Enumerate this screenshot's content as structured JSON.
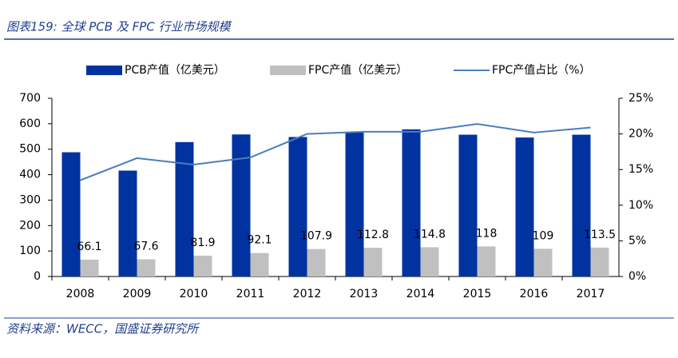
{
  "title": "图表159: 全球 PCB 及 FPC 行业市场规模",
  "source": "资料来源：WECC，国盛证券研究所",
  "chart_data": {
    "type": "bar",
    "categories": [
      "2008",
      "2009",
      "2010",
      "2011",
      "2012",
      "2013",
      "2014",
      "2015",
      "2016",
      "2017"
    ],
    "series": [
      {
        "name": "PCB产值（亿美元）",
        "color": "#0033a0",
        "type": "bar",
        "values": [
          488,
          416,
          528,
          558,
          548,
          565,
          578,
          557,
          546,
          557
        ]
      },
      {
        "name": "FPC产值（亿美元）",
        "color": "#c0c0c0",
        "type": "bar",
        "values": [
          66.1,
          67.6,
          81.9,
          92.1,
          107.9,
          112.8,
          114.8,
          118,
          109,
          113.5
        ]
      },
      {
        "name": "FPC产值占比（%）",
        "color": "#4a7ebb",
        "type": "line",
        "axis": "y2",
        "values": [
          13.5,
          16.6,
          15.7,
          16.7,
          20.0,
          20.3,
          20.3,
          21.4,
          20.2,
          20.9
        ]
      }
    ],
    "ylim": [
      0,
      700
    ],
    "yticks": [
      0,
      100,
      200,
      300,
      400,
      500,
      600,
      700
    ],
    "y2lim": [
      0,
      25
    ],
    "y2ticks": [
      {
        "value": 0,
        "label": "0%"
      },
      {
        "value": 5,
        "label": "5%"
      },
      {
        "value": 10,
        "label": "10%"
      },
      {
        "value": 15,
        "label": "15%"
      },
      {
        "value": 20,
        "label": "20%"
      },
      {
        "value": 25,
        "label": "25%"
      }
    ],
    "legend": "top"
  }
}
